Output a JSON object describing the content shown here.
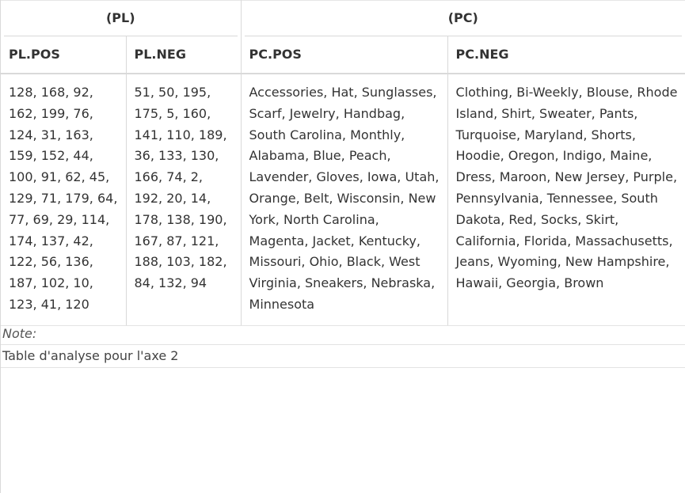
{
  "table": {
    "groups": [
      {
        "label": "(PL)"
      },
      {
        "label": "(PC)"
      }
    ],
    "columns": [
      {
        "label": "PL.POS",
        "value": "128, 168, 92, 162, 199, 76, 124, 31, 163, 159, 152, 44, 100, 91, 62, 45, 129, 71, 179, 64, 77, 69, 29, 114, 174, 137, 42, 122, 56, 136, 187, 102, 10, 123, 41, 120"
      },
      {
        "label": "PL.NEG",
        "value": "51, 50, 195, 175, 5, 160, 141, 110, 189, 36, 133, 130, 166, 74, 2, 192, 20, 14, 178, 138, 190, 167, 87, 121, 188, 103, 182, 84, 132, 94"
      },
      {
        "label": "PC.POS",
        "value": "Accessories, Hat, Sunglasses, Scarf, Jewelry, Handbag, South Carolina, Monthly, Alabama, Blue, Peach, Lavender, Gloves, Iowa, Utah, Orange, Belt, Wisconsin, New York, North Carolina, Magenta, Jacket, Kentucky, Missouri, Ohio, Black, West Virginia, Sneakers, Nebraska, Minnesota"
      },
      {
        "label": "PC.NEG",
        "value": "Clothing, Bi-Weekly, Blouse, Rhode Island, Shirt, Sweater, Pants, Turquoise, Maryland, Shorts, Hoodie, Oregon, Indigo, Maine, Dress, Maroon, New Jersey, Purple, Pennsylvania, Tennessee, South Dakota, Red, Socks, Skirt, California, Florida, Massachusetts, Jeans, Wyoming, New Hampshire, Hawaii, Georgia, Brown"
      }
    ],
    "note_label": "Note:",
    "caption": "Table d'analyse pour l'axe 2"
  }
}
